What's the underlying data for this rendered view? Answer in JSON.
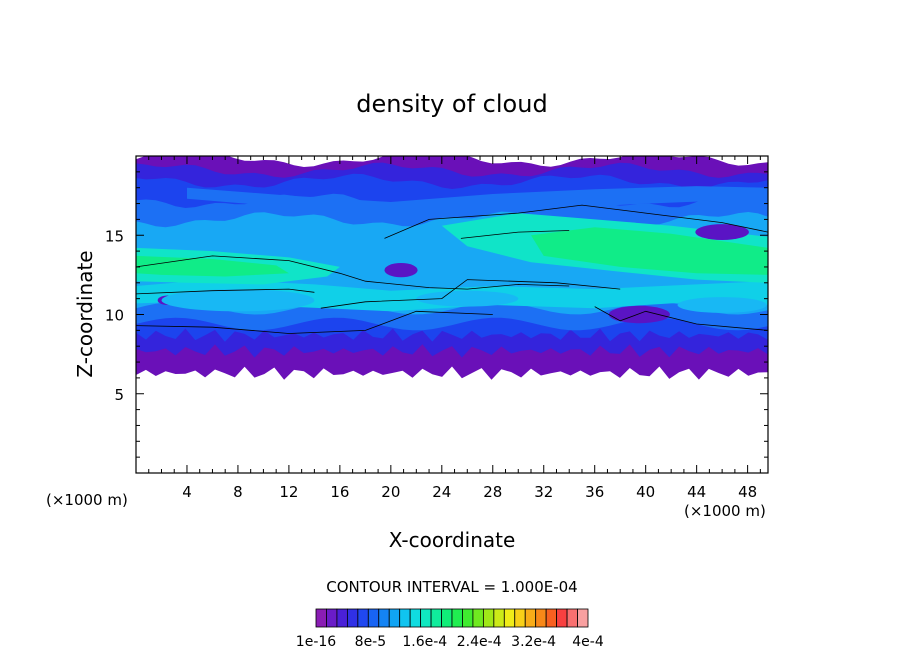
{
  "chart_data": {
    "type": "heatmap",
    "title": "density of cloud",
    "xlabel": "X-coordinate",
    "ylabel": "Z-coordinate",
    "x_unit": "(×1000 m)",
    "z_unit": "(×1000 m)",
    "xlim": [
      0,
      49.6
    ],
    "ylim": [
      0,
      20
    ],
    "x_ticks": [
      "4",
      "8",
      "12",
      "16",
      "20",
      "24",
      "28",
      "32",
      "36",
      "40",
      "44",
      "48"
    ],
    "y_ticks": [
      "5",
      "10",
      "15"
    ],
    "contour_interval_text": "CONTOUR INTERVAL = 1.000E-04",
    "colorbar": {
      "labels": [
        "1e-16",
        "8e-5",
        "1.6e-4",
        "2.4e-4",
        "3.2e-4",
        "4e-4"
      ],
      "colors": [
        "#8a1db4",
        "#6a1cc8",
        "#4a20d8",
        "#3030e6",
        "#2048f0",
        "#1864f4",
        "#1484f4",
        "#10a4f4",
        "#10c4f0",
        "#10dce0",
        "#10e8c0",
        "#10ec9c",
        "#10ee78",
        "#20ee50",
        "#40ec30",
        "#70ea20",
        "#a0e818",
        "#ccea18",
        "#f0ec18",
        "#f8d018",
        "#f8ac18",
        "#f88818",
        "#f86020",
        "#f84040",
        "#f87070",
        "#f8a0a0"
      ]
    },
    "density_field": {
      "cloud_base_km": 6.5,
      "regions": [
        {
          "zone": "top band",
          "z_range": [
            18.8,
            19.8
          ],
          "value": 2e-05
        },
        {
          "zone": "upper blue layer",
          "z_range": [
            15.5,
            18.8
          ],
          "value": 6e-05
        },
        {
          "zone": "left green core",
          "x_range": [
            0,
            16
          ],
          "z_range": [
            12,
            14
          ],
          "value": 0.00014
        },
        {
          "zone": "right green core",
          "x_range": [
            32,
            49.6
          ],
          "z_range": [
            12.5,
            14.5
          ],
          "value": 0.00015
        },
        {
          "zone": "mid cyan layer",
          "z_range": [
            10,
            12
          ],
          "value": 9e-05
        },
        {
          "zone": "lower blue layer",
          "z_range": [
            8,
            10
          ],
          "value": 4e-05
        },
        {
          "zone": "base purple band",
          "z_range": [
            6.5,
            8
          ],
          "value": 1e-05
        }
      ]
    },
    "grid": false
  }
}
